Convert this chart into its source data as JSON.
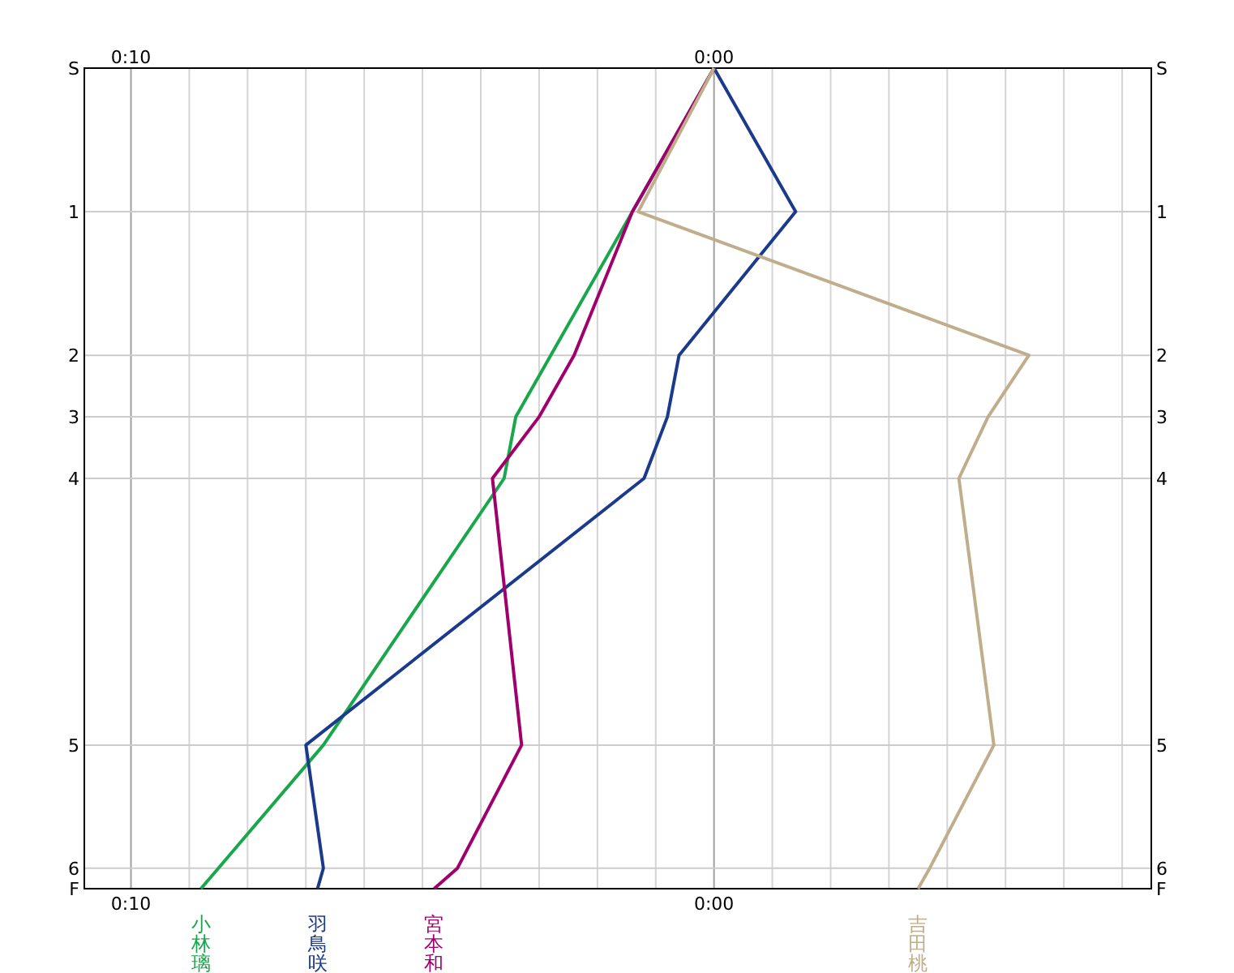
{
  "chart_data": {
    "type": "line",
    "orientation": "horizontal",
    "grid": true,
    "xlim": [
      10.8,
      -7.5
    ],
    "x2lim": [
      10.8,
      -7.5
    ],
    "xticks": [
      {
        "value": 10,
        "label": "0:10"
      },
      {
        "value": 9,
        "label": null
      },
      {
        "value": 8,
        "label": null
      },
      {
        "value": 7,
        "label": null
      },
      {
        "value": 6,
        "label": null
      },
      {
        "value": 5,
        "label": null
      },
      {
        "value": 4,
        "label": null
      },
      {
        "value": 3,
        "label": null
      },
      {
        "value": 2,
        "label": null
      },
      {
        "value": 1,
        "label": null
      },
      {
        "value": 0,
        "label": "0:00"
      },
      {
        "value": -1,
        "label": null
      },
      {
        "value": -2,
        "label": null
      },
      {
        "value": -3,
        "label": null
      },
      {
        "value": -4,
        "label": null
      },
      {
        "value": -5,
        "label": null
      },
      {
        "value": -6,
        "label": null
      },
      {
        "value": -7,
        "label": null
      }
    ],
    "x2ticks": [
      {
        "value": 10,
        "label": "0:10"
      },
      {
        "value": 0,
        "label": "0:00"
      }
    ],
    "categories": [
      "S",
      null,
      null,
      null,
      null,
      null,
      null,
      "1",
      null,
      null,
      null,
      null,
      null,
      null,
      "2",
      null,
      null,
      "3",
      null,
      null,
      "4",
      null,
      null,
      null,
      null,
      null,
      null,
      null,
      null,
      null,
      null,
      null,
      null,
      "5",
      null,
      null,
      null,
      null,
      null,
      "6",
      "F"
    ],
    "series": [
      {
        "name": "小林璃",
        "color": "#1aa64a",
        "values": [
          0,
          null,
          null,
          null,
          null,
          null,
          null,
          1.4,
          null,
          null,
          null,
          null,
          null,
          null,
          2.8,
          null,
          null,
          3.4,
          null,
          null,
          3.6,
          null,
          null,
          null,
          null,
          null,
          null,
          null,
          null,
          null,
          null,
          null,
          null,
          6.7,
          null,
          null,
          null,
          null,
          null,
          8.5,
          8.8
        ]
      },
      {
        "name": "羽鳥咲",
        "color": "#1c3a8c",
        "values": [
          0,
          null,
          null,
          null,
          null,
          null,
          null,
          -1.4,
          null,
          null,
          null,
          null,
          null,
          null,
          0.6,
          null,
          null,
          0.8,
          null,
          null,
          1.2,
          null,
          null,
          null,
          null,
          null,
          null,
          null,
          null,
          null,
          null,
          null,
          null,
          7.0,
          null,
          null,
          null,
          null,
          null,
          6.7,
          6.8
        ]
      },
      {
        "name": "宮本和",
        "color": "#a0006e",
        "values": [
          0,
          null,
          null,
          null,
          null,
          null,
          null,
          1.4,
          null,
          null,
          null,
          null,
          null,
          null,
          2.4,
          null,
          null,
          3.0,
          null,
          null,
          3.8,
          null,
          null,
          null,
          null,
          null,
          null,
          null,
          null,
          null,
          null,
          null,
          null,
          3.3,
          null,
          null,
          null,
          null,
          null,
          4.4,
          4.8
        ]
      },
      {
        "name": "吉田桃",
        "color": "#c0ad8c",
        "values": [
          0,
          null,
          null,
          null,
          null,
          null,
          null,
          1.3,
          null,
          null,
          null,
          null,
          null,
          null,
          -5.4,
          null,
          null,
          -4.7,
          null,
          null,
          -4.2,
          null,
          null,
          null,
          null,
          null,
          null,
          null,
          null,
          null,
          null,
          null,
          null,
          -4.8,
          null,
          null,
          null,
          null,
          null,
          -3.7,
          -3.5
        ]
      }
    ]
  }
}
